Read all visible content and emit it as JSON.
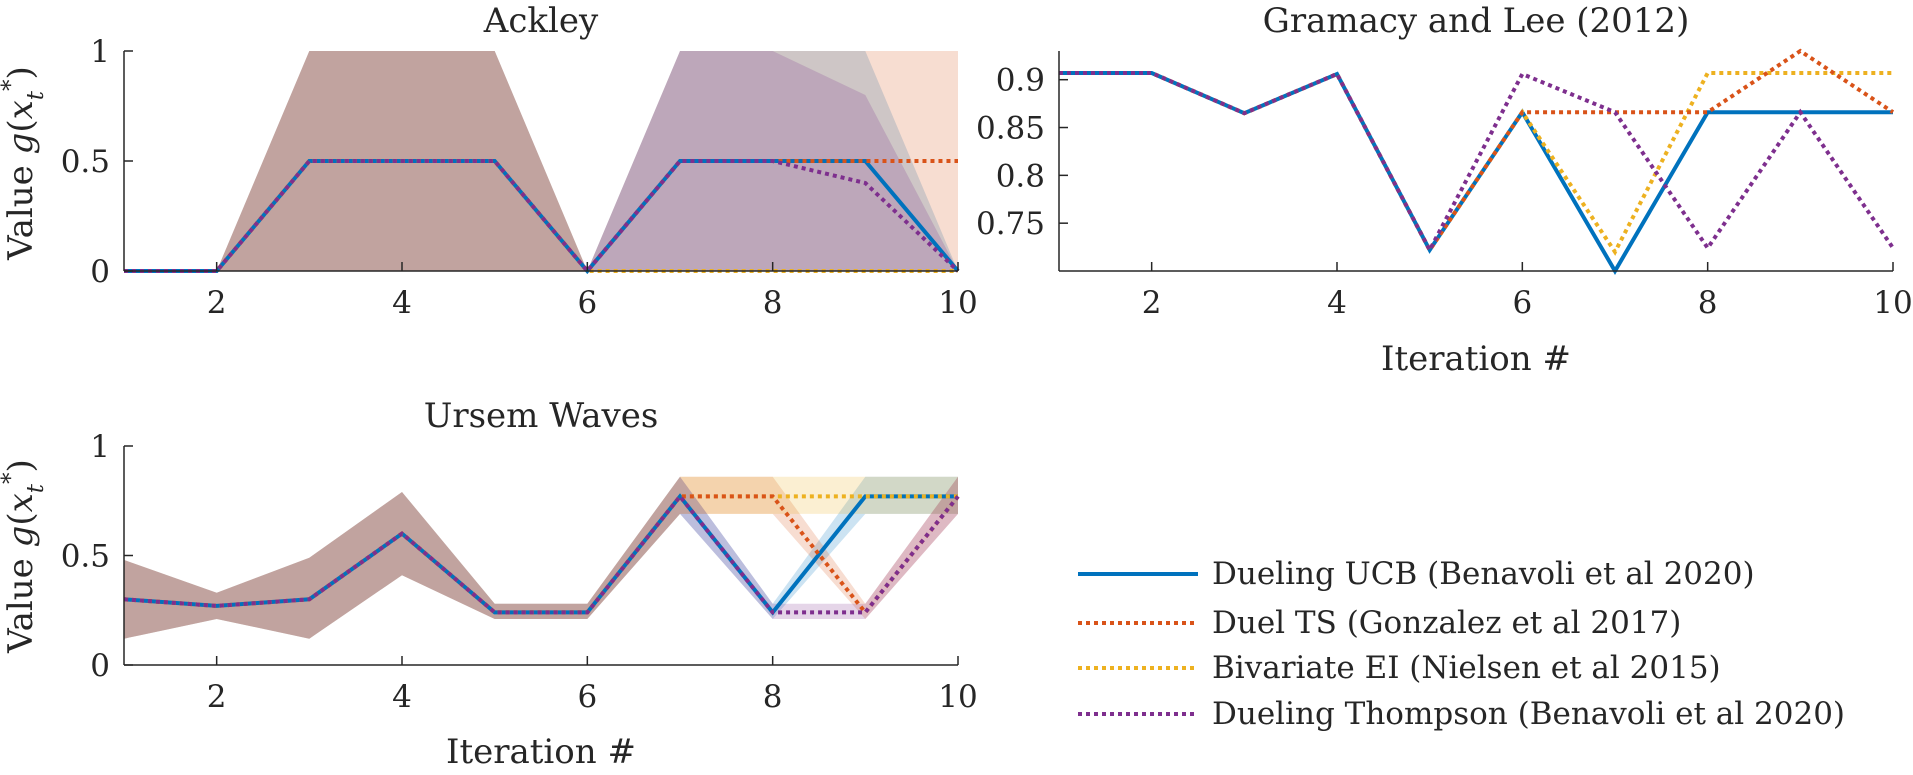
{
  "legend": {
    "entries": [
      {
        "series": 0,
        "label": "Dueling UCB (Benavoli et al 2020)"
      },
      {
        "series": 1,
        "label": "Duel TS (Gonzalez et al 2017)"
      },
      {
        "series": 2,
        "label": "Bivariate EI (Nielsen et al 2015)"
      },
      {
        "series": 3,
        "label": "Dueling Thompson (Benavoli et al 2020)"
      }
    ]
  },
  "series_styles": [
    {
      "name": "Dueling UCB (Benavoli et al 2020)",
      "color": "#0072BD",
      "dash": "solid"
    },
    {
      "name": "Duel TS (Gonzalez et al 2017)",
      "color": "#D95319",
      "dash": "dotted"
    },
    {
      "name": "Bivariate EI (Nielsen et al 2015)",
      "color": "#EDB120",
      "dash": "dotted"
    },
    {
      "name": "Dueling Thompson (Benavoli et al 2020)",
      "color": "#7E2F8E",
      "dash": "dotted"
    }
  ],
  "chart_data": [
    {
      "type": "line",
      "title": "Ackley",
      "xlabel": "",
      "ylabel": "Value g(x*_t)",
      "xlim": [
        1,
        10
      ],
      "ylim": [
        0,
        1
      ],
      "xticks": [
        2,
        4,
        6,
        8,
        10
      ],
      "yticks": [
        0,
        0.5,
        1
      ],
      "ytick_labels": [
        "0",
        "0.5",
        "1"
      ],
      "x": [
        1,
        2,
        3,
        4,
        5,
        6,
        7,
        8,
        9,
        10
      ],
      "series": [
        {
          "name": "Dueling UCB (Benavoli et al 2020)",
          "values": [
            0,
            0,
            0.5,
            0.5,
            0.5,
            0,
            0.5,
            0.5,
            0.5,
            0
          ],
          "lower": [
            0,
            0,
            0,
            0,
            0,
            0,
            0,
            0,
            0,
            0
          ],
          "upper": [
            0,
            0,
            1,
            1,
            1,
            0,
            1,
            1,
            1,
            0
          ]
        },
        {
          "name": "Duel TS (Gonzalez et al 2017)",
          "values": [
            0,
            0,
            0.5,
            0.5,
            0.5,
            0,
            0.5,
            0.5,
            0.5,
            0.5
          ],
          "lower": [
            0,
            0,
            0,
            0,
            0,
            0,
            0,
            0,
            0,
            0
          ],
          "upper": [
            0,
            0,
            1,
            1,
            1,
            0,
            1,
            1,
            1,
            1
          ]
        },
        {
          "name": "Bivariate EI (Nielsen et al 2015)",
          "values": [
            0,
            0,
            0.5,
            0.5,
            0.5,
            0,
            0,
            0,
            0,
            0
          ],
          "lower": [
            0,
            0,
            0,
            0,
            0,
            0,
            0,
            0,
            0,
            0
          ],
          "upper": [
            0,
            0,
            1,
            1,
            1,
            0,
            0,
            0,
            0,
            0
          ]
        },
        {
          "name": "Dueling Thompson (Benavoli et al 2020)",
          "values": [
            0,
            0,
            0.5,
            0.5,
            0.5,
            0,
            0.5,
            0.5,
            0.4,
            0
          ],
          "lower": [
            0,
            0,
            0,
            0,
            0,
            0,
            0,
            0,
            0,
            0
          ],
          "upper": [
            0,
            0,
            1,
            1,
            1,
            0,
            1,
            1,
            0.8,
            0
          ]
        }
      ]
    },
    {
      "type": "line",
      "title": "Gramacy and Lee (2012)",
      "xlabel": "Iteration #",
      "ylabel": "",
      "xlim": [
        1,
        10
      ],
      "ylim": [
        0.7,
        0.93
      ],
      "xticks": [
        2,
        4,
        6,
        8,
        10
      ],
      "yticks": [
        0.75,
        0.8,
        0.85,
        0.9
      ],
      "ytick_labels": [
        "0.75",
        "0.8",
        "0.85",
        "0.9"
      ],
      "x": [
        1,
        2,
        3,
        4,
        5,
        6,
        7,
        8,
        9,
        10
      ],
      "series": [
        {
          "name": "Dueling UCB (Benavoli et al 2020)",
          "values": [
            0.907,
            0.907,
            0.865,
            0.906,
            0.722,
            0.866,
            0.7,
            0.866,
            0.866,
            0.866
          ]
        },
        {
          "name": "Duel TS (Gonzalez et al 2017)",
          "values": [
            0.907,
            0.907,
            0.865,
            0.906,
            0.722,
            0.866,
            0.866,
            0.866,
            0.933,
            0.866
          ]
        },
        {
          "name": "Bivariate EI (Nielsen et al 2015)",
          "values": [
            0.907,
            0.907,
            0.865,
            0.906,
            0.722,
            0.866,
            0.72,
            0.907,
            0.907,
            0.907
          ]
        },
        {
          "name": "Dueling Thompson (Benavoli et al 2020)",
          "values": [
            0.907,
            0.907,
            0.865,
            0.906,
            0.722,
            0.906,
            0.866,
            0.724,
            0.866,
            0.724
          ]
        }
      ]
    },
    {
      "type": "line",
      "title": "Ursem Waves",
      "xlabel": "Iteration #",
      "ylabel": "Value g(x*_t)",
      "xlim": [
        1,
        10
      ],
      "ylim": [
        0,
        1
      ],
      "xticks": [
        2,
        4,
        6,
        8,
        10
      ],
      "yticks": [
        0,
        0.5,
        1
      ],
      "ytick_labels": [
        "0",
        "0.5",
        "1"
      ],
      "x": [
        1,
        2,
        3,
        4,
        5,
        6,
        7,
        8,
        9,
        10
      ],
      "series": [
        {
          "name": "Dueling UCB (Benavoli et al 2020)",
          "values": [
            0.3,
            0.27,
            0.3,
            0.6,
            0.24,
            0.24,
            0.77,
            0.24,
            0.77,
            0.77
          ],
          "lower": [
            0.12,
            0.21,
            0.12,
            0.41,
            0.21,
            0.21,
            0.69,
            0.21,
            0.69,
            0.69
          ],
          "upper": [
            0.48,
            0.33,
            0.49,
            0.79,
            0.28,
            0.28,
            0.86,
            0.28,
            0.86,
            0.86
          ]
        },
        {
          "name": "Duel TS (Gonzalez et al 2017)",
          "values": [
            0.3,
            0.27,
            0.3,
            0.6,
            0.24,
            0.24,
            0.77,
            0.77,
            0.24,
            0.77
          ],
          "lower": [
            0.12,
            0.21,
            0.12,
            0.41,
            0.21,
            0.21,
            0.69,
            0.69,
            0.21,
            0.69
          ],
          "upper": [
            0.48,
            0.33,
            0.49,
            0.79,
            0.28,
            0.28,
            0.86,
            0.86,
            0.28,
            0.86
          ]
        },
        {
          "name": "Bivariate EI (Nielsen et al 2015)",
          "values": [
            0.3,
            0.27,
            0.3,
            0.6,
            0.24,
            0.24,
            0.77,
            0.77,
            0.77,
            0.77
          ],
          "lower": [
            0.12,
            0.21,
            0.12,
            0.41,
            0.21,
            0.21,
            0.69,
            0.69,
            0.69,
            0.69
          ],
          "upper": [
            0.48,
            0.33,
            0.49,
            0.79,
            0.28,
            0.28,
            0.86,
            0.86,
            0.86,
            0.86
          ]
        },
        {
          "name": "Dueling Thompson (Benavoli et al 2020)",
          "values": [
            0.3,
            0.27,
            0.3,
            0.6,
            0.24,
            0.24,
            0.77,
            0.24,
            0.24,
            0.77
          ],
          "lower": [
            0.12,
            0.21,
            0.12,
            0.41,
            0.21,
            0.21,
            0.69,
            0.21,
            0.21,
            0.69
          ],
          "upper": [
            0.48,
            0.33,
            0.49,
            0.79,
            0.28,
            0.28,
            0.86,
            0.28,
            0.28,
            0.86
          ]
        }
      ]
    }
  ]
}
